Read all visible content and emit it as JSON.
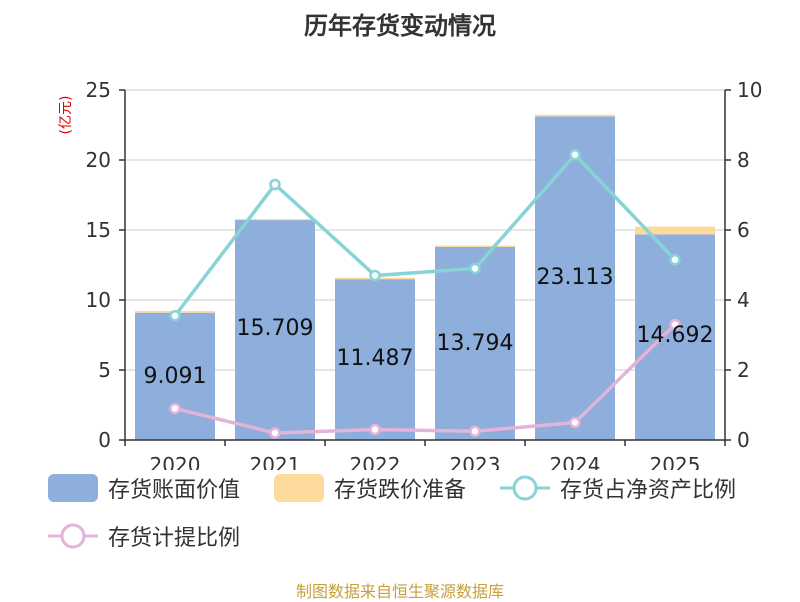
{
  "chart_data": {
    "type": "bar",
    "title": "历年存货变动情况",
    "categories": [
      "2020",
      "2021",
      "2022",
      "2023",
      "2024",
      "2025"
    ],
    "left_axis": {
      "unit_label": "(亿元)",
      "ylim": [
        0,
        25
      ],
      "ticks": [
        "0",
        "5",
        "10",
        "15",
        "20",
        "25"
      ]
    },
    "right_axis": {
      "unit_label": "%",
      "ylim": [
        0,
        10
      ],
      "ticks": [
        "0",
        "2",
        "4",
        "6",
        "8",
        "10"
      ]
    },
    "series": [
      {
        "name": "存货账面价值",
        "kind": "bar",
        "axis": "left",
        "color": "#8eaedb",
        "values": [
          9.091,
          15.709,
          11.487,
          13.794,
          23.113,
          14.692
        ],
        "labels": [
          "9.091",
          "15.709",
          "11.487",
          "13.794",
          "23.113",
          "14.692"
        ]
      },
      {
        "name": "存货跌价准备",
        "kind": "bar-stacked",
        "axis": "left",
        "color": "#fdd99b",
        "values": [
          0.12,
          0.08,
          0.1,
          0.1,
          0.12,
          0.55
        ]
      },
      {
        "name": "存货占净资产比例",
        "kind": "line",
        "axis": "right",
        "color": "#88d3d5",
        "values": [
          3.55,
          7.3,
          4.7,
          4.9,
          8.15,
          5.15
        ]
      },
      {
        "name": "存货计提比例",
        "kind": "line",
        "axis": "right",
        "color": "#e4b3d9",
        "values": [
          0.9,
          0.2,
          0.3,
          0.25,
          0.5,
          3.3
        ]
      }
    ],
    "grid": true,
    "legend_position": "bottom"
  },
  "source_text": "制图数据来自恒生聚源数据库"
}
